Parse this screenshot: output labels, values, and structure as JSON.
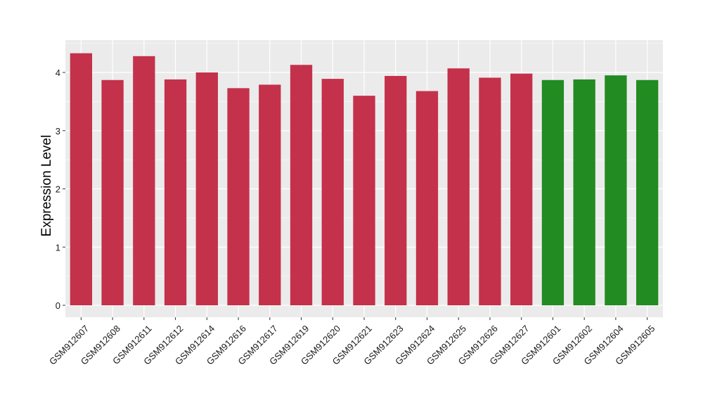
{
  "chart_data": {
    "type": "bar",
    "title": "",
    "xlabel": "",
    "ylabel": "Expression Level",
    "ylim": [
      0,
      4.5
    ],
    "yticks": [
      0,
      1,
      2,
      3,
      4
    ],
    "grid": true,
    "panel_background": "#ebebeb",
    "grid_color": "#ffffff",
    "categories": [
      "GSM912607",
      "GSM912608",
      "GSM912611",
      "GSM912612",
      "GSM912614",
      "GSM912616",
      "GSM912617",
      "GSM912619",
      "GSM912620",
      "GSM912621",
      "GSM912623",
      "GSM912624",
      "GSM912625",
      "GSM912626",
      "GSM912627",
      "GSM912601",
      "GSM912602",
      "GSM912604",
      "GSM912605"
    ],
    "values": [
      4.33,
      3.87,
      4.28,
      3.88,
      4.0,
      3.73,
      3.79,
      4.13,
      3.89,
      3.6,
      3.94,
      3.68,
      4.07,
      3.91,
      3.98,
      3.87,
      3.88,
      3.95,
      3.87
    ],
    "bar_colors": [
      "#c4314b",
      "#c4314b",
      "#c4314b",
      "#c4314b",
      "#c4314b",
      "#c4314b",
      "#c4314b",
      "#c4314b",
      "#c4314b",
      "#c4314b",
      "#c4314b",
      "#c4314b",
      "#c4314b",
      "#c4314b",
      "#c4314b",
      "#228b22",
      "#228b22",
      "#228b22",
      "#228b22"
    ]
  }
}
